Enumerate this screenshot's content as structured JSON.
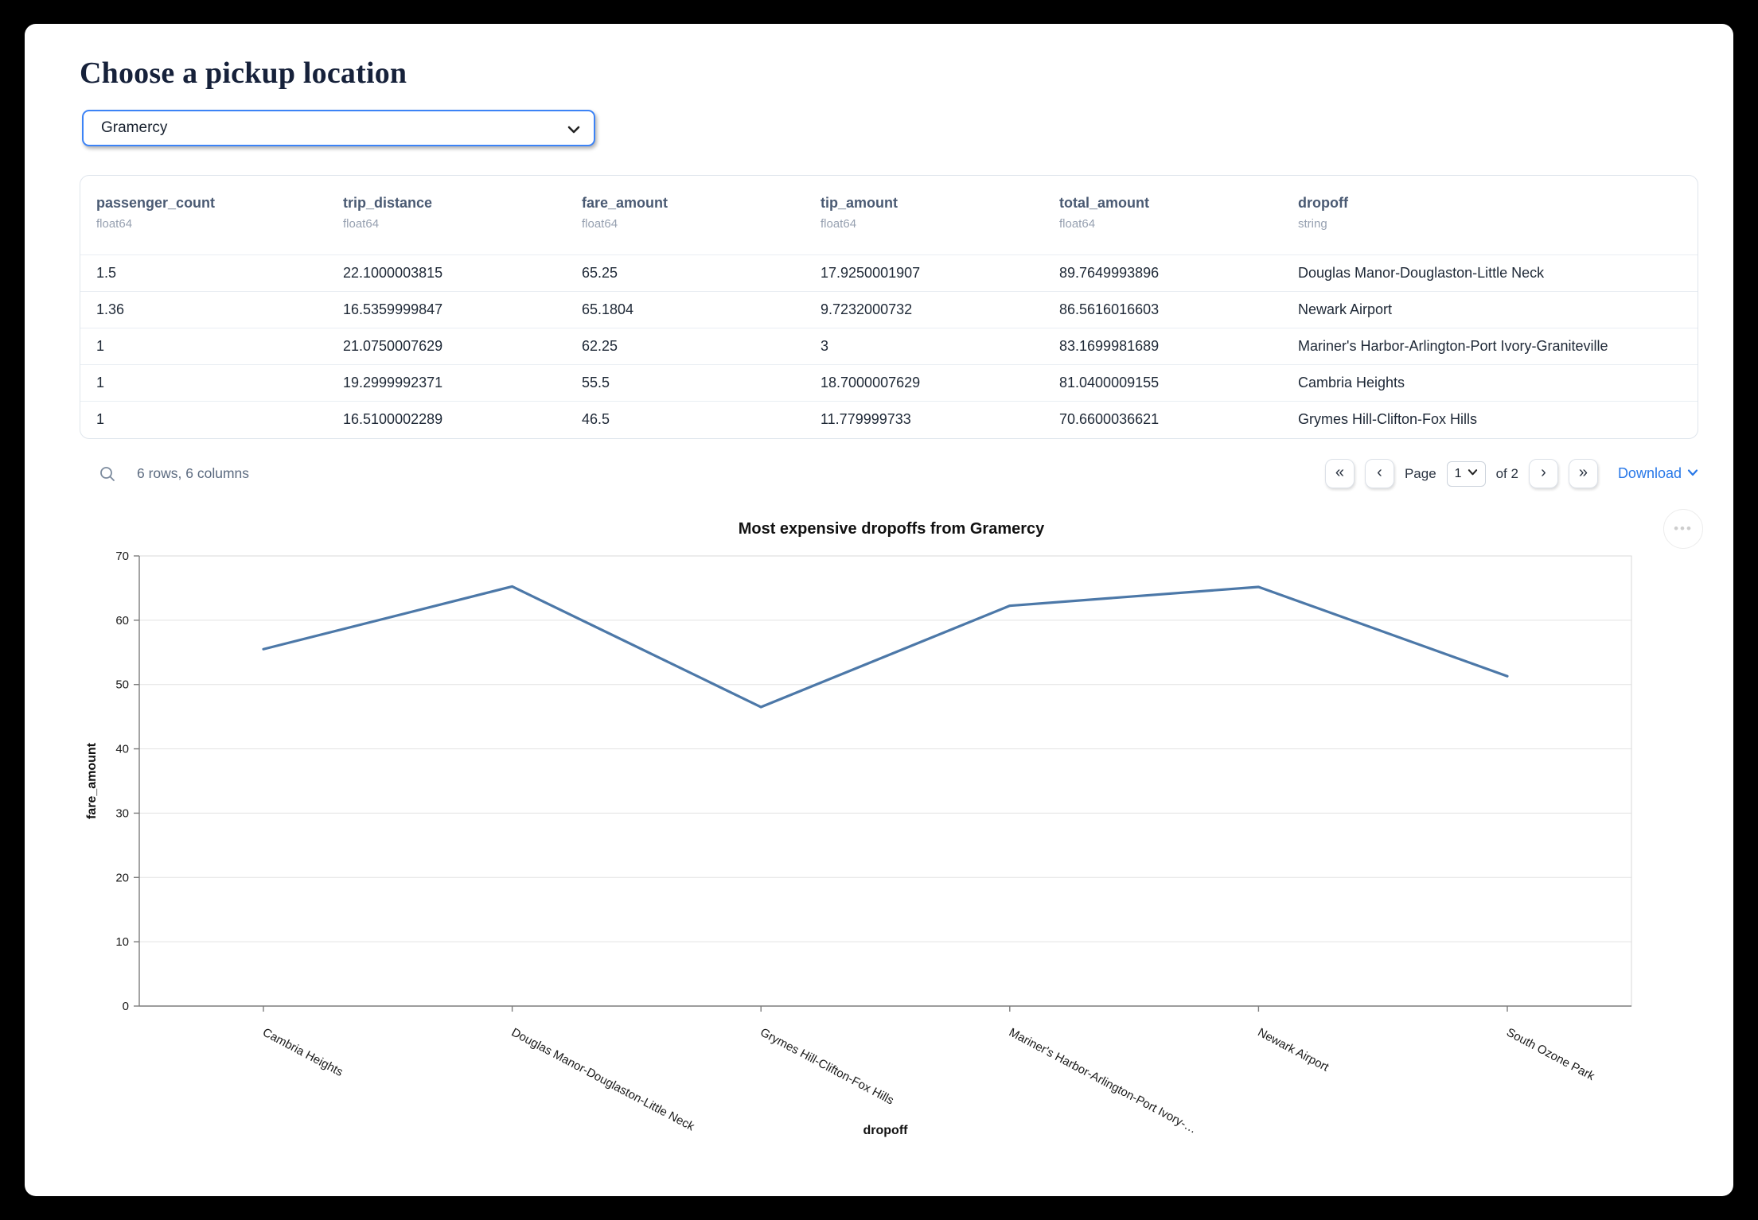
{
  "page": {
    "title": "Choose a pickup location"
  },
  "pickup_select": {
    "value": "Gramercy"
  },
  "table": {
    "columns": [
      {
        "name": "passenger_count",
        "dtype": "float64"
      },
      {
        "name": "trip_distance",
        "dtype": "float64"
      },
      {
        "name": "fare_amount",
        "dtype": "float64"
      },
      {
        "name": "tip_amount",
        "dtype": "float64"
      },
      {
        "name": "total_amount",
        "dtype": "float64"
      },
      {
        "name": "dropoff",
        "dtype": "string"
      }
    ],
    "rows": [
      [
        "1.5",
        "22.1000003815",
        "65.25",
        "17.9250001907",
        "89.7649993896",
        "Douglas Manor-Douglaston-Little Neck"
      ],
      [
        "1.36",
        "16.5359999847",
        "65.1804",
        "9.7232000732",
        "86.5616016603",
        "Newark Airport"
      ],
      [
        "1",
        "21.0750007629",
        "62.25",
        "3",
        "83.1699981689",
        "Mariner's Harbor-Arlington-Port Ivory-Graniteville"
      ],
      [
        "1",
        "19.2999992371",
        "55.5",
        "18.7000007629",
        "81.0400009155",
        "Cambria Heights"
      ],
      [
        "1",
        "16.5100002289",
        "46.5",
        "11.779999733",
        "70.6600036621",
        "Grymes Hill-Clifton-Fox Hills"
      ]
    ],
    "summary": "6 rows, 6 columns",
    "pagination": {
      "first": "«",
      "prev": "‹",
      "next": "›",
      "last": "»",
      "page_label": "Page",
      "page_value": "1",
      "of_label": "of 2"
    },
    "download_label": "Download",
    "more_label": "•••"
  },
  "chart_data": {
    "type": "line",
    "title": "Most expensive dropoffs from Gramercy",
    "xlabel": "dropoff",
    "ylabel": "fare_amount",
    "ylim": [
      0,
      70
    ],
    "ytick_step": 10,
    "grid": true,
    "legend": "none",
    "categories": [
      "Cambria Heights",
      "Douglas Manor-Douglaston-Little Neck",
      "Grymes Hill-Clifton-Fox Hills",
      "Mariner's Harbor-Arlington-Port Ivory-Graniteville",
      "Newark Airport",
      "South Ozone Park"
    ],
    "x_labels_display": [
      "Cambria Heights",
      "Douglas Manor-Douglaston-Little Neck",
      "Grymes Hill-Clifton-Fox Hills",
      "Mariner's Harbor-Arlington-Port Ivory-…",
      "Newark Airport",
      "South Ozone Park"
    ],
    "values": [
      55.5,
      65.25,
      46.5,
      62.25,
      65.1804,
      51.3
    ],
    "line_color": "#4c78a8"
  },
  "colors": {
    "accent_blue": "#3c83f6",
    "link_blue": "#2878e8",
    "line_blue": "#4c78a8",
    "header_text": "#4a5a73"
  }
}
